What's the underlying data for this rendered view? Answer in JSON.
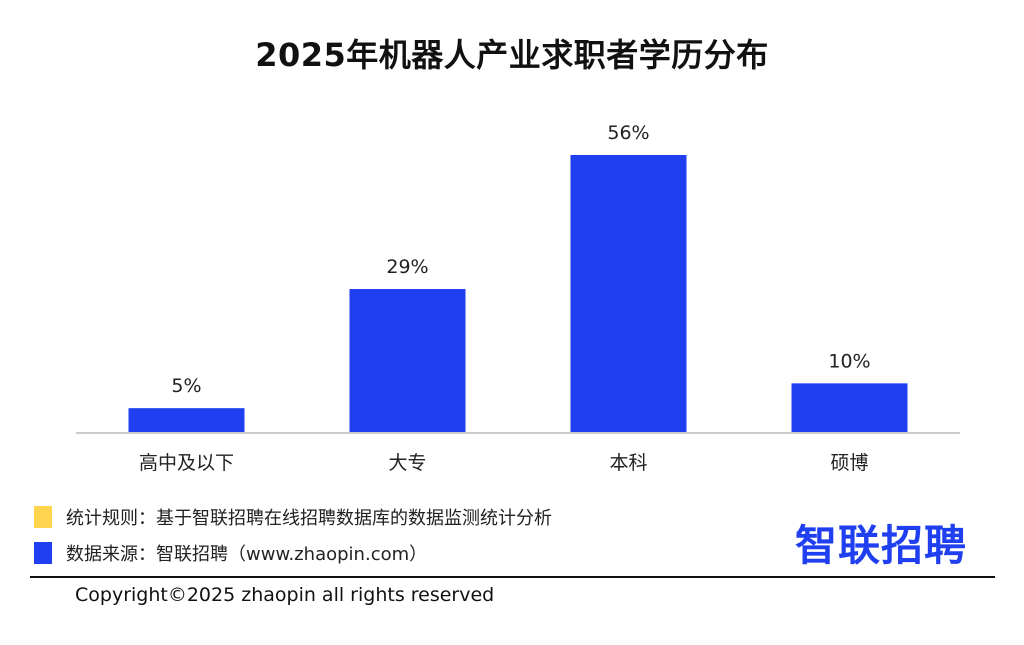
{
  "chart_data": {
    "type": "bar",
    "title": "2025年机器人产业求职者学历分布",
    "categories": [
      "高中及以下",
      "大专",
      "本科",
      "硕博"
    ],
    "values": [
      5,
      29,
      56,
      10
    ],
    "value_labels": [
      "5%",
      "29%",
      "56%",
      "10%"
    ],
    "ylim": [
      0,
      56
    ],
    "grid": false,
    "bar_color": "#1f3ff0",
    "baseline_color": "#cccccc"
  },
  "legend": {
    "rule": {
      "label": "统计规则：基于智联招聘在线招聘数据库的数据监测统计分析",
      "color": "#ffd54f"
    },
    "source": {
      "label": "数据来源：智联招聘（www.zhaopin.com）",
      "color": "#1f3ff0"
    }
  },
  "brand": {
    "logo_text": "智联招聘",
    "color": "#1f3ff0"
  },
  "footer": {
    "copyright": "Copyright©2025 zhaopin all rights reserved"
  }
}
